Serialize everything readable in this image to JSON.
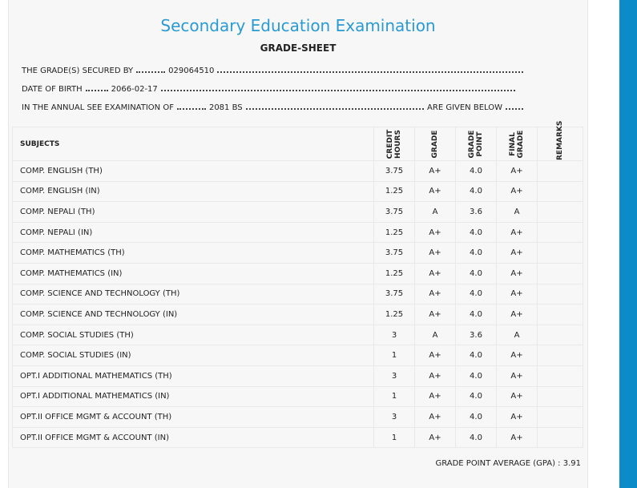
{
  "header": {
    "title": "Secondary Education Examination",
    "subtitle": "GRADE-SHEET"
  },
  "info": [
    {
      "label": "THE GRADE(S) SECURED BY",
      "value": "029064510"
    },
    {
      "label": "DATE OF BIRTH",
      "value": "2066-02-17"
    },
    {
      "label": "IN THE ANNUAL SEE EXAMINATION OF",
      "value": "2081 BS",
      "suffix": "ARE GIVEN BELOW"
    }
  ],
  "table": {
    "columns": [
      "SUBJECTS",
      "CREDIT HOURS",
      "GRADE",
      "GRADE POINT",
      "FINAL GRADE",
      "REMARKS"
    ],
    "rows": [
      [
        "COMP. ENGLISH (TH)",
        "3.75",
        "A+",
        "4.0",
        "A+"
      ],
      [
        "COMP. ENGLISH (IN)",
        "1.25",
        "A+",
        "4.0",
        "A+"
      ],
      [
        "COMP. NEPALI (TH)",
        "3.75",
        "A",
        "3.6",
        "A"
      ],
      [
        "COMP. NEPALI (IN)",
        "1.25",
        "A+",
        "4.0",
        "A+"
      ],
      [
        "COMP. MATHEMATICS (TH)",
        "3.75",
        "A+",
        "4.0",
        "A+"
      ],
      [
        "COMP. MATHEMATICS (IN)",
        "1.25",
        "A+",
        "4.0",
        "A+"
      ],
      [
        "COMP. SCIENCE AND TECHNOLOGY (TH)",
        "3.75",
        "A+",
        "4.0",
        "A+"
      ],
      [
        "COMP. SCIENCE AND TECHNOLOGY (IN)",
        "1.25",
        "A+",
        "4.0",
        "A+"
      ],
      [
        "COMP. SOCIAL STUDIES (TH)",
        "3",
        "A",
        "3.6",
        "A"
      ],
      [
        "COMP. SOCIAL STUDIES (IN)",
        "1",
        "A+",
        "4.0",
        "A+"
      ],
      [
        "OPT.I ADDITIONAL MATHEMATICS (TH)",
        "3",
        "A+",
        "4.0",
        "A+"
      ],
      [
        "OPT.I ADDITIONAL MATHEMATICS (IN)",
        "1",
        "A+",
        "4.0",
        "A+"
      ],
      [
        "OPT.II OFFICE MGMT & ACCOUNT (TH)",
        "3",
        "A+",
        "4.0",
        "A+"
      ],
      [
        "OPT.II OFFICE MGMT & ACCOUNT (IN)",
        "1",
        "A+",
        "4.0",
        "A+"
      ]
    ]
  },
  "footer": {
    "label": "GRADE POINT AVERAGE (GPA) :",
    "value": "3.91"
  }
}
